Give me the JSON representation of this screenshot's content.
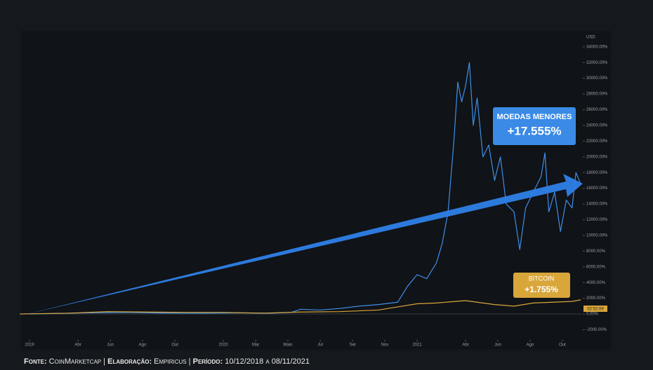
{
  "chart_data": {
    "type": "line",
    "y_axis_label": "USD",
    "xlim": [
      2018.967,
      2021.848
    ],
    "xticks": [
      {
        "value": 2019,
        "label": "2019"
      },
      {
        "value": 2019.25,
        "label": "Abr"
      },
      {
        "value": 2019.417,
        "label": "Jun"
      },
      {
        "value": 2019.583,
        "label": "Ago"
      },
      {
        "value": 2019.75,
        "label": "Out"
      },
      {
        "value": 2020,
        "label": "2020"
      },
      {
        "value": 2020.167,
        "label": "Mar"
      },
      {
        "value": 2020.333,
        "label": "Maio"
      },
      {
        "value": 2020.5,
        "label": "Jul"
      },
      {
        "value": 2020.667,
        "label": "Set"
      },
      {
        "value": 2020.833,
        "label": "Nov"
      },
      {
        "value": 2021,
        "label": "2021"
      },
      {
        "value": 2021.25,
        "label": "Abr"
      },
      {
        "value": 2021.417,
        "label": "Jun"
      },
      {
        "value": 2021.583,
        "label": "Ago"
      },
      {
        "value": 2021.75,
        "label": "Out"
      }
    ],
    "ylim": [
      -3000,
      35500
    ],
    "yticks": [
      {
        "value": -2000,
        "label": "-2000.00%"
      },
      {
        "value": 0,
        "label": "0.00%"
      },
      {
        "value": 2000,
        "label": "2000.00%"
      },
      {
        "value": 4000,
        "label": "4000.00%"
      },
      {
        "value": 6000,
        "label": "6000.00%"
      },
      {
        "value": 8000,
        "label": "8000.00%"
      },
      {
        "value": 10000,
        "label": "10000.00%"
      },
      {
        "value": 12000,
        "label": "12000.00%"
      },
      {
        "value": 14000,
        "label": "14000.00%"
      },
      {
        "value": 16000,
        "label": "16000.00%"
      },
      {
        "value": 18000,
        "label": "18000.00%"
      },
      {
        "value": 20000,
        "label": "20000.00%"
      },
      {
        "value": 22000,
        "label": "22000.00%"
      },
      {
        "value": 24000,
        "label": "24000.00%"
      },
      {
        "value": 26000,
        "label": "26000.00%"
      },
      {
        "value": 28000,
        "label": "28000.00%"
      },
      {
        "value": 30000,
        "label": "30000.00%"
      },
      {
        "value": 32000,
        "label": "32000.00%"
      },
      {
        "value": 34000,
        "label": "34000.00%"
      }
    ],
    "series": [
      {
        "color": "#3f8ee8",
        "x": [
          2018.95,
          2019.1,
          2019.3,
          2019.5,
          2019.7,
          2019.9,
          2020.1,
          2020.25,
          2020.35,
          2020.4,
          2020.5,
          2020.6,
          2020.7,
          2020.8,
          2020.9,
          2020.95,
          2021.0,
          2021.05,
          2021.1,
          2021.13,
          2021.16,
          2021.19,
          2021.21,
          2021.23,
          2021.25,
          2021.27,
          2021.29,
          2021.31,
          2021.34,
          2021.37,
          2021.4,
          2021.43,
          2021.46,
          2021.5,
          2021.53,
          2021.56,
          2021.6,
          2021.64,
          2021.66,
          2021.68,
          2021.71,
          2021.74,
          2021.77,
          2021.8,
          2021.82,
          2021.845
        ],
        "values": [
          0,
          50,
          150,
          200,
          120,
          100,
          150,
          100,
          200,
          600,
          500,
          700,
          1000,
          1200,
          1500,
          3500,
          5000,
          4500,
          6500,
          9000,
          13000,
          22000,
          29500,
          27000,
          29000,
          32000,
          24000,
          27500,
          20000,
          21500,
          17000,
          20000,
          14000,
          13000,
          8200,
          13500,
          15500,
          17500,
          20500,
          13000,
          15500,
          10500,
          14500,
          13500,
          18000,
          16500
        ]
      },
      {
        "color": "#d9a63a",
        "x": [
          2018.95,
          2019.2,
          2019.4,
          2019.6,
          2019.8,
          2020.0,
          2020.2,
          2020.4,
          2020.6,
          2020.8,
          2020.9,
          2021.0,
          2021.1,
          2021.25,
          2021.4,
          2021.5,
          2021.6,
          2021.7,
          2021.8,
          2021.845
        ],
        "values": [
          0,
          100,
          300,
          250,
          200,
          200,
          100,
          250,
          300,
          500,
          900,
          1300,
          1400,
          1700,
          1200,
          1000,
          1400,
          1500,
          1600,
          1800
        ]
      }
    ],
    "annotations": {
      "small_coins": {
        "title": "MOEDAS MENORES",
        "value": "+17.555%"
      },
      "bitcoin": {
        "title": "BITCOIN",
        "value": "+1.755%"
      },
      "price_tag": "02:52:09"
    }
  },
  "footer": {
    "source_label": "Fonte:",
    "source": "CoinMarketcap",
    "made_label": "Elaboração:",
    "made_by": "Empiricus",
    "period_label": "Período:",
    "period": "10/12/2018 a 08/11/2021"
  }
}
